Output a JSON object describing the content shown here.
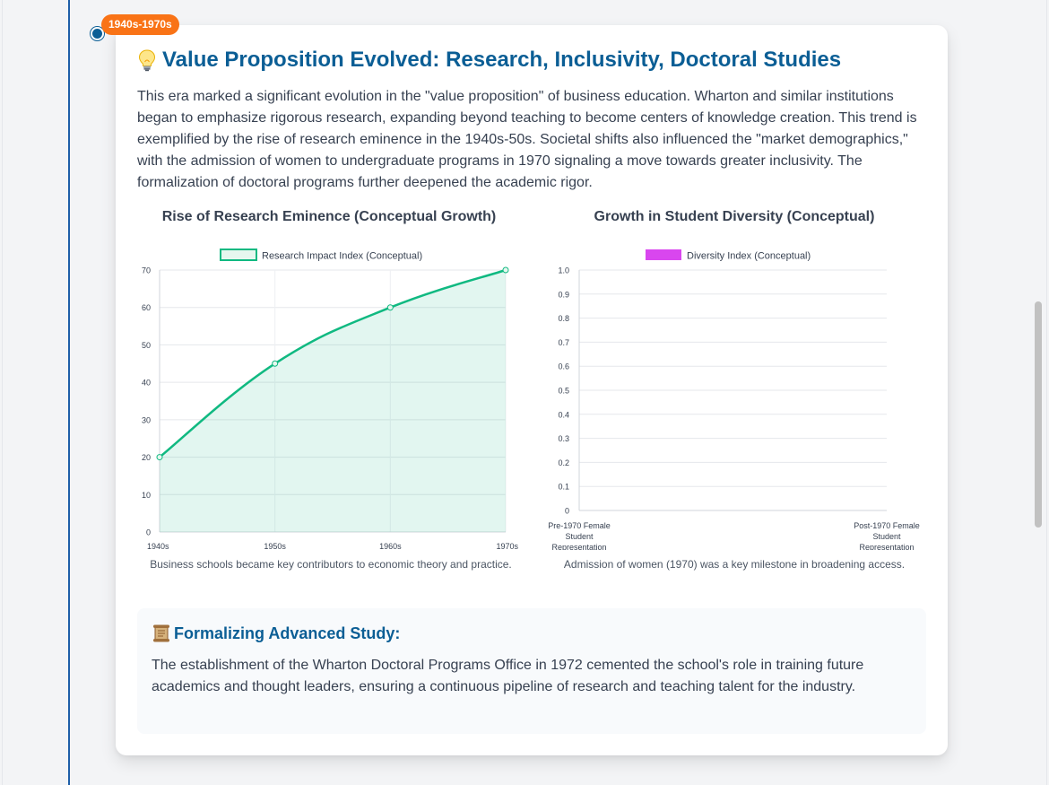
{
  "era": {
    "label": "1940s-1970s"
  },
  "card": {
    "icon": "lightbulb-icon",
    "title": "Value Proposition Evolved: Research, Inclusivity, Doctoral Studies",
    "body": "This era marked a significant evolution in the \"value proposition\" of business education. Wharton and similar institutions began to emphasize rigorous research, expanding beyond teaching to become centers of knowledge creation. This trend is exemplified by the rise of research eminence in the 1940s-50s. Societal shifts also influenced the \"market demographics,\" with the admission of women to undergraduate programs in 1970 signaling a move towards greater inclusivity. The formalization of doctoral programs further deepened the academic rigor."
  },
  "charts": {
    "research": {
      "title": "Rise of Research Eminence (Conceptual Growth)",
      "caption": "Business schools became key contributors to economic theory and practice."
    },
    "diversity": {
      "title": "Growth in Student Diversity (Conceptual)",
      "caption": "Admission of women (1970) was a key milestone in broadening access."
    }
  },
  "chart_data": [
    {
      "type": "line",
      "title": "Rise of Research Eminence (Conceptual Growth)",
      "categories": [
        "1940s",
        "1950s",
        "1960s",
        "1970s"
      ],
      "series": [
        {
          "name": "Research Impact Index (Conceptual)",
          "values": [
            20,
            45,
            60,
            70
          ],
          "color": "#10b981",
          "fill": true
        }
      ],
      "ylim": [
        0,
        70
      ],
      "yticks": [
        0,
        10,
        20,
        30,
        40,
        50,
        60,
        70
      ],
      "grid": true,
      "legend": "top"
    },
    {
      "type": "bar",
      "title": "Growth in Student Diversity (Conceptual)",
      "categories": [
        [
          "Pre-1970 Female",
          "Student",
          "Representation"
        ],
        [
          "Post-1970 Female",
          "Student",
          "Representation"
        ]
      ],
      "series": [
        {
          "name": "Diversity Index (Conceptual)",
          "values": [
            null,
            null
          ],
          "color": "#d946ef"
        }
      ],
      "ylim": [
        0,
        1.0
      ],
      "yticks": [
        "0",
        "0.1",
        "0.2",
        "0.3",
        "0.4",
        "0.5",
        "0.6",
        "0.7",
        "0.8",
        "0.9",
        "1.0"
      ],
      "grid": true,
      "legend": "top"
    }
  ],
  "subsection": {
    "icon": "scroll-icon",
    "title": "Formalizing Advanced Study:",
    "text": "The establishment of the Wharton Doctoral Programs Office in 1972 cemented the school's role in training future academics and thought leaders, ensuring a continuous pipeline of research and teaching talent for the industry."
  },
  "colors": {
    "accent": "#0b5e95",
    "badge": "#f97316",
    "timeline": "#1e5fa8",
    "line_series": "#10b981",
    "bar_series": "#d946ef"
  }
}
